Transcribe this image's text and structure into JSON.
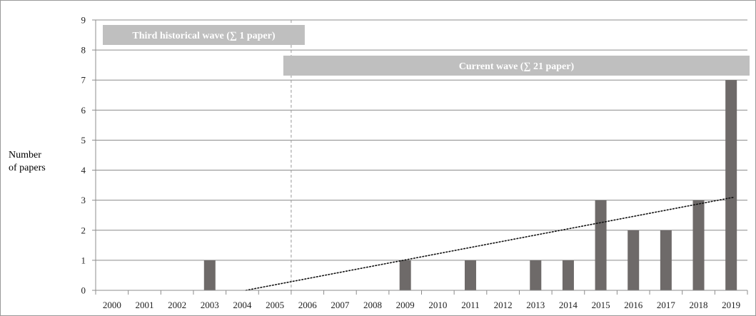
{
  "chart_data": {
    "type": "bar",
    "ylabel_lines": [
      "Number",
      "of papers"
    ],
    "categories": [
      "2000",
      "2001",
      "2002",
      "2003",
      "2004",
      "2005",
      "2006",
      "2007",
      "2008",
      "2009",
      "2010",
      "2011",
      "2012",
      "2013",
      "2014",
      "2015",
      "2016",
      "2017",
      "2018",
      "2019"
    ],
    "values": [
      0,
      0,
      0,
      1,
      0,
      0,
      0,
      0,
      0,
      1,
      0,
      1,
      0,
      1,
      1,
      3,
      2,
      2,
      3,
      7
    ],
    "ylim": [
      0,
      9
    ],
    "yticks": [
      0,
      1,
      2,
      3,
      4,
      5,
      6,
      7,
      8,
      9
    ],
    "grid": true,
    "bar_color": "#6e6a69",
    "trendline": {
      "from": [
        "2004",
        0
      ],
      "to": [
        "2019",
        3.1
      ],
      "style": "dotted"
    },
    "divider_at": "2005",
    "annotations": [
      {
        "text": "Third historical wave (∑ 1 paper)",
        "start": "2000",
        "end": "2005"
      },
      {
        "text": "Current wave (∑ 21 paper)",
        "start": "2005",
        "end": "2019"
      }
    ],
    "band_color": "#bfbfbf"
  }
}
